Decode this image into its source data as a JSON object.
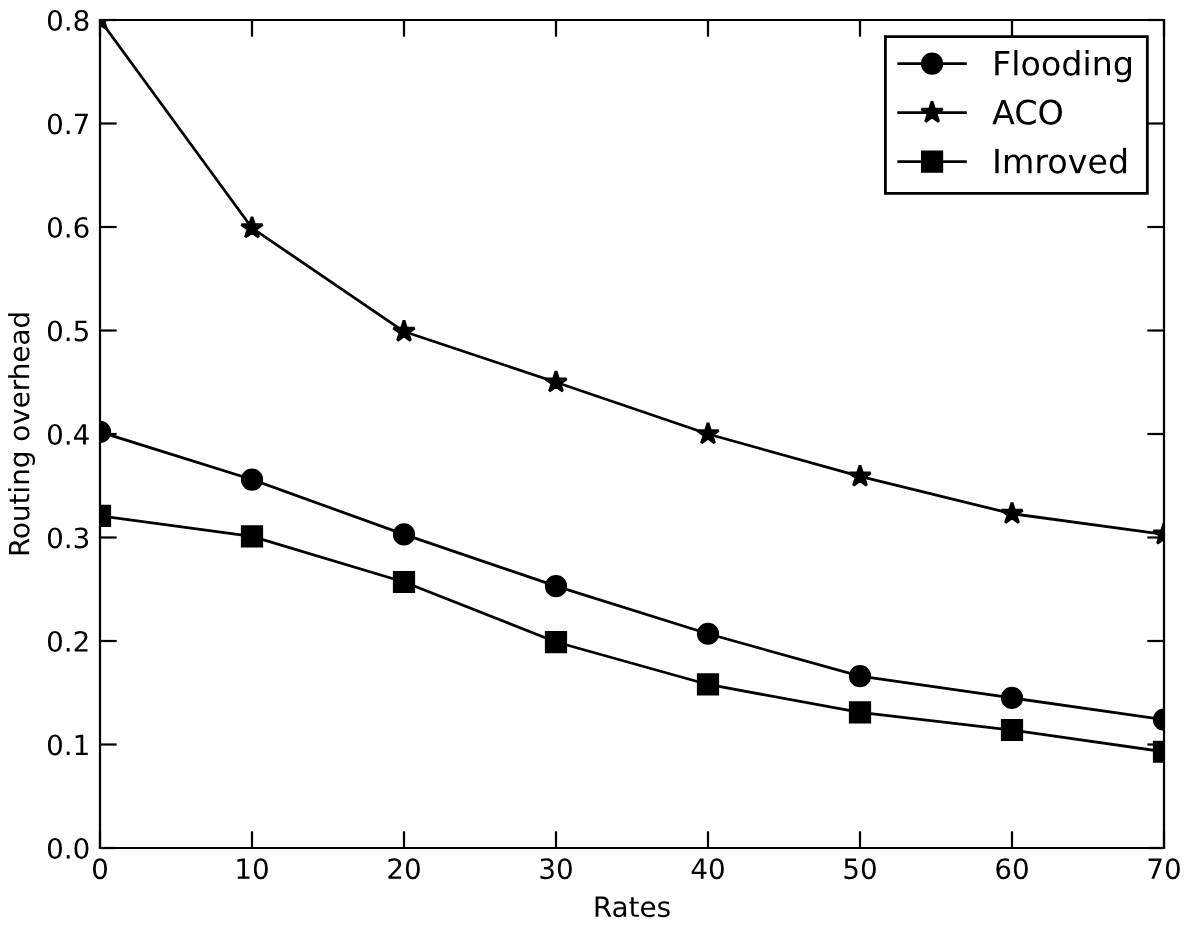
{
  "chart_data": {
    "type": "line",
    "xlabel": "Rates",
    "ylabel": "Routing overhead",
    "x": [
      0,
      10,
      20,
      30,
      40,
      50,
      60,
      70
    ],
    "series": [
      {
        "name": "Flooding",
        "color": "#000000",
        "marker": "circle",
        "values": [
          0.402,
          0.356,
          0.303,
          0.253,
          0.207,
          0.166,
          0.145,
          0.124
        ]
      },
      {
        "name": "ACO",
        "color": "#000000",
        "marker": "star",
        "values": [
          0.8,
          0.599,
          0.499,
          0.45,
          0.4,
          0.359,
          0.323,
          0.303
        ]
      },
      {
        "name": "Imroved",
        "color": "#000000",
        "marker": "square",
        "values": [
          0.321,
          0.301,
          0.257,
          0.199,
          0.158,
          0.131,
          0.114,
          0.093
        ]
      }
    ],
    "xlim": [
      0,
      70
    ],
    "xticks": [
      0,
      10,
      20,
      30,
      40,
      50,
      60,
      70
    ],
    "ylim": [
      0,
      0.8
    ],
    "yticks": [
      {
        "value": 0,
        "label": "0.0"
      },
      0.1,
      0.2,
      0.3,
      0.4,
      0.5,
      0.6,
      0.7,
      0.8
    ],
    "grid": false,
    "legend": "top right",
    "line_style": "solid"
  }
}
